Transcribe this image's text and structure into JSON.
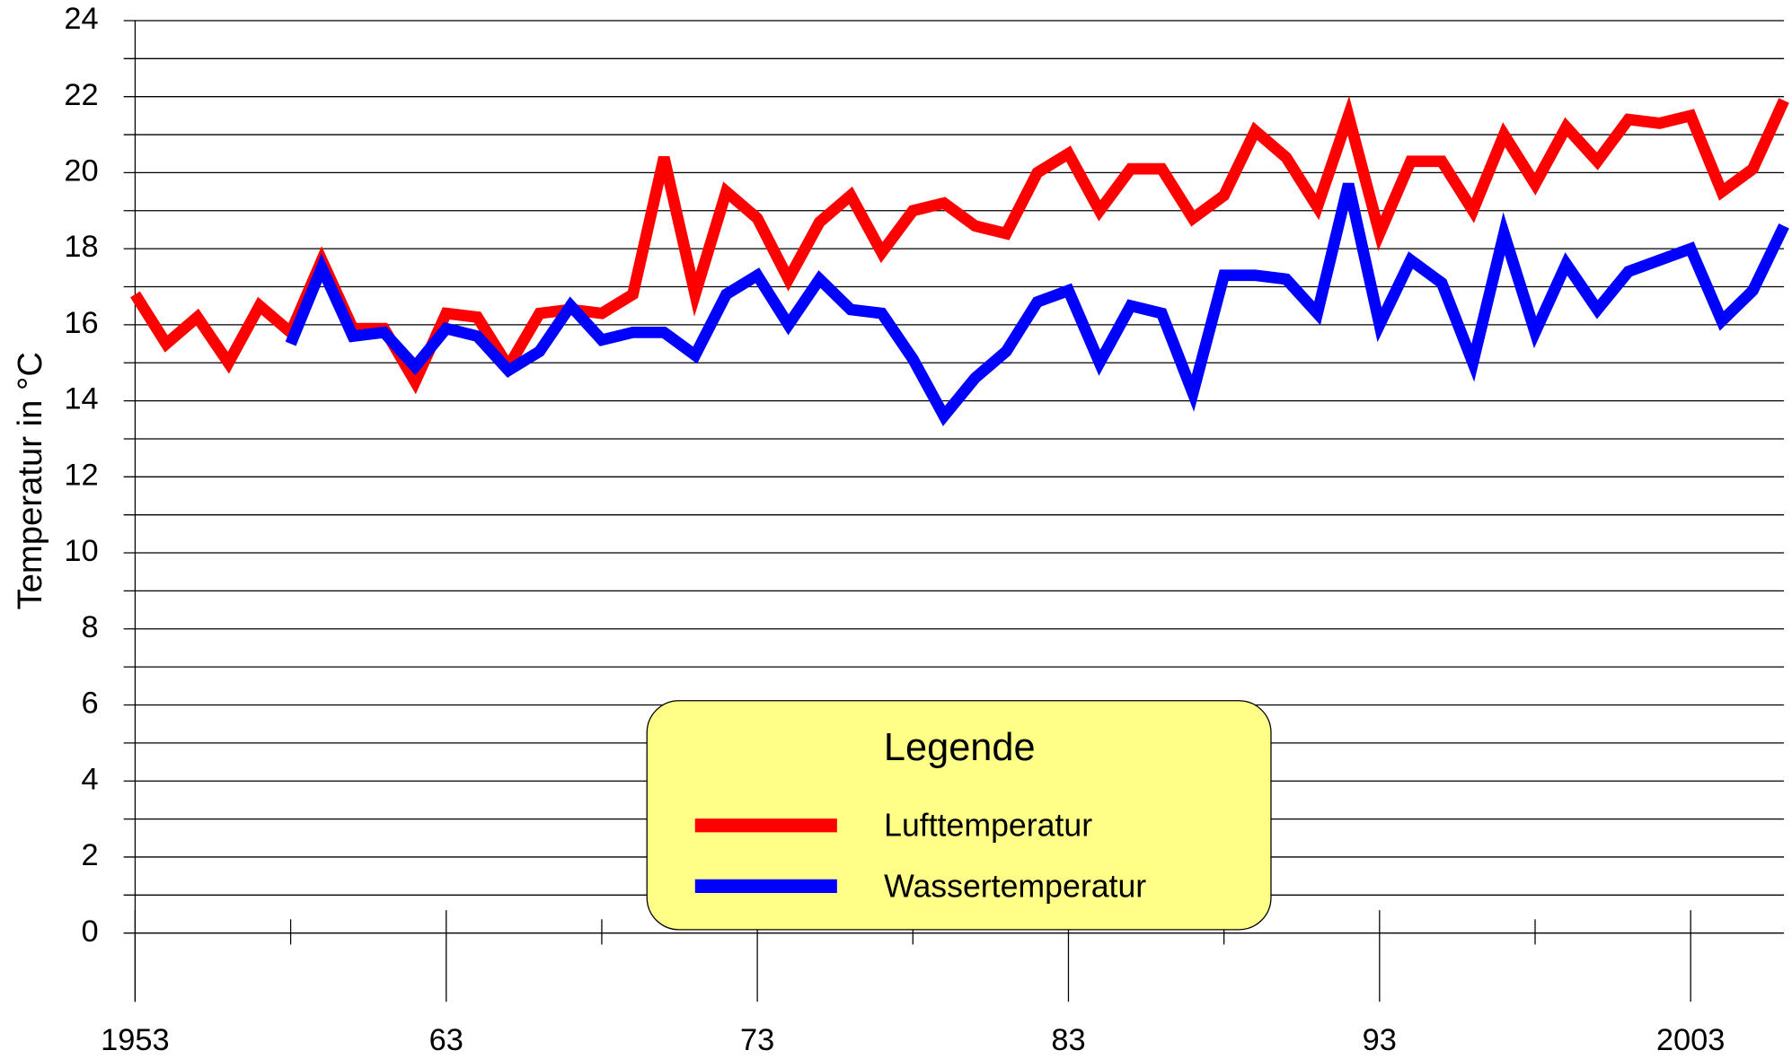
{
  "chart_data": {
    "type": "line",
    "ylabel": "Temperatur in °C",
    "x": [
      1953,
      1954,
      1955,
      1956,
      1957,
      1958,
      1959,
      1960,
      1961,
      1962,
      1963,
      1964,
      1965,
      1966,
      1967,
      1968,
      1969,
      1970,
      1971,
      1972,
      1973,
      1974,
      1975,
      1976,
      1977,
      1978,
      1979,
      1980,
      1981,
      1982,
      1983,
      1984,
      1985,
      1986,
      1987,
      1988,
      1989,
      1990,
      1991,
      1992,
      1993,
      1994,
      1995,
      1996,
      1997,
      1998,
      1999,
      2000,
      2001,
      2002,
      2003,
      2004,
      2005,
      2006
    ],
    "series": [
      {
        "name": "Lufttemperatur",
        "color": "#ff0000",
        "values": [
          16.8,
          15.5,
          16.2,
          15.0,
          16.5,
          15.8,
          17.7,
          15.9,
          15.9,
          14.5,
          16.3,
          16.2,
          14.9,
          16.3,
          16.4,
          16.3,
          16.8,
          20.4,
          16.8,
          19.5,
          18.8,
          17.2,
          18.7,
          19.4,
          17.9,
          19.0,
          19.2,
          18.6,
          18.4,
          20.0,
          20.5,
          19.0,
          20.1,
          20.1,
          18.8,
          19.4,
          21.1,
          20.4,
          19.1,
          21.5,
          18.4,
          20.3,
          20.3,
          19.0,
          21.0,
          19.7,
          21.2,
          20.3,
          21.4,
          21.3,
          21.5,
          19.5,
          20.1,
          21.9
        ]
      },
      {
        "name": "Wassertemperatur",
        "color": "#0000ff",
        "values": [
          null,
          null,
          null,
          null,
          null,
          15.5,
          17.5,
          15.7,
          15.8,
          14.9,
          15.9,
          15.7,
          14.8,
          15.3,
          16.5,
          15.6,
          15.8,
          15.8,
          15.2,
          16.8,
          17.3,
          16.0,
          17.2,
          16.4,
          16.3,
          15.1,
          13.6,
          14.6,
          15.3,
          16.6,
          16.9,
          15.0,
          16.5,
          16.3,
          14.2,
          17.3,
          17.3,
          17.2,
          16.3,
          19.7,
          16.0,
          17.7,
          17.1,
          15.0,
          18.4,
          15.8,
          17.6,
          16.4,
          17.4,
          17.7,
          18.0,
          16.1,
          16.9,
          18.6
        ]
      }
    ],
    "legend_title": "Legende",
    "xlim": [
      1953,
      2006
    ],
    "xticks": [
      1953,
      {
        "value": 1963,
        "label": "63"
      },
      {
        "value": 1973,
        "label": "73"
      },
      {
        "value": 1983,
        "label": "83"
      },
      {
        "value": 1993,
        "label": "93"
      },
      2003
    ],
    "ylim": [
      0,
      24
    ],
    "yticks": [
      0,
      2,
      4,
      6,
      8,
      10,
      12,
      14,
      16,
      18,
      20,
      22,
      24
    ],
    "grid": true
  }
}
